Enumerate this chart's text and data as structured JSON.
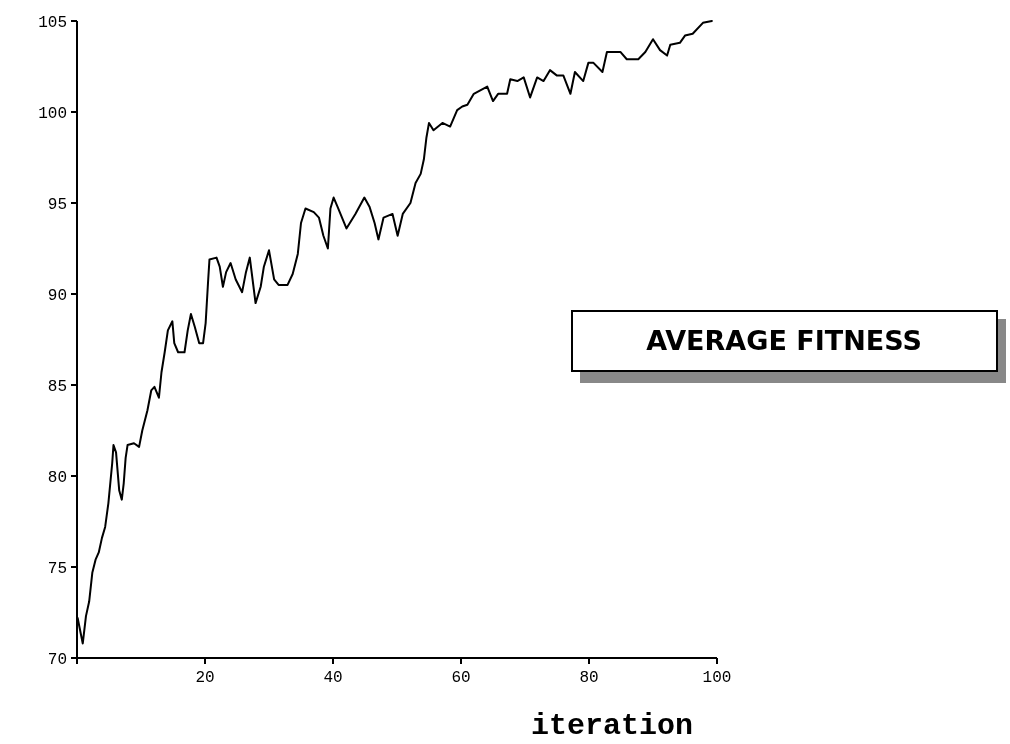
{
  "chart_data": {
    "type": "line",
    "title": "AVERAGE FITNESS",
    "xlabel": "iteration",
    "xlim": [
      0,
      100
    ],
    "ylim": [
      70,
      105
    ],
    "xticks": [
      20,
      40,
      60,
      80,
      100
    ],
    "yticks": [
      70,
      75,
      80,
      85,
      90,
      95,
      100,
      105
    ],
    "grid": false,
    "marker": "none",
    "line_style": "solid",
    "series": [
      {
        "color": "#000000",
        "x": [
          0.1,
          0.9,
          1.4,
          1.9,
          2.4,
          2.9,
          3.4,
          3.9,
          4.4,
          4.9,
          5.5,
          5.7,
          6.1,
          6.6,
          7,
          7.3,
          7.6,
          7.9,
          8.9,
          9.7,
          10.2,
          11,
          11.6,
          12.1,
          12.8,
          13.2,
          13.7,
          14.2,
          14.9,
          15.2,
          15.8,
          16.8,
          17.3,
          17.8,
          18.4,
          19.1,
          19.7,
          20.1,
          20.5,
          20.7,
          21.8,
          22.3,
          22.8,
          23.3,
          24,
          24.8,
          25.8,
          26.4,
          27,
          27.9,
          28.7,
          29.2,
          30,
          30.8,
          31.5,
          32.9,
          33.7,
          34.5,
          35,
          35.7,
          37,
          37.8,
          38.5,
          39.2,
          39.6,
          40.1,
          40.7,
          42.1,
          43.5,
          44.9,
          45.7,
          46.5,
          47.1,
          47.9,
          49.3,
          50.1,
          50.9,
          52.1,
          52.9,
          53.7,
          54.2,
          54.6,
          55,
          55.7,
          57.1,
          58.3,
          59.4,
          60.2,
          61,
          62,
          64.1,
          65,
          65.8,
          67.2,
          67.7,
          68.8,
          69.8,
          70.8,
          71.9,
          72.9,
          73.9,
          75,
          76,
          77.1,
          77.8,
          79.1,
          79.9,
          80.7,
          82.1,
          82.8,
          84.9,
          85.9,
          87.7,
          88.8,
          90,
          91.1,
          92.2,
          92.7,
          94.2,
          95,
          96.2,
          97.8,
          99.2
        ],
        "values": [
          72.2,
          70.8,
          72.3,
          73.1,
          74.7,
          75.4,
          75.8,
          76.6,
          77.2,
          78.5,
          80.7,
          81.7,
          81.3,
          79.2,
          78.7,
          79.6,
          81,
          81.7,
          81.8,
          81.6,
          82.5,
          83.6,
          84.7,
          84.9,
          84.3,
          85.7,
          86.8,
          88,
          88.5,
          87.3,
          86.8,
          86.8,
          88,
          88.9,
          88.2,
          87.3,
          87.3,
          88.4,
          90.8,
          91.9,
          92,
          91.5,
          90.4,
          91.2,
          91.7,
          90.8,
          90.1,
          91.2,
          92,
          89.5,
          90.4,
          91.5,
          92.4,
          90.8,
          90.5,
          90.5,
          91.1,
          92.2,
          93.9,
          94.7,
          94.5,
          94.2,
          93.2,
          92.5,
          94.7,
          95.3,
          94.8,
          93.6,
          94.4,
          95.3,
          94.8,
          93.9,
          93,
          94.2,
          94.4,
          93.2,
          94.4,
          95,
          96.1,
          96.6,
          97.4,
          98.6,
          99.4,
          99,
          99.4,
          99.2,
          100.1,
          100.3,
          100.4,
          101,
          101.4,
          100.6,
          101,
          101,
          101.8,
          101.7,
          101.9,
          100.8,
          101.9,
          101.7,
          102.3,
          102,
          102,
          101,
          102.2,
          101.7,
          102.7,
          102.7,
          102.2,
          103.3,
          103.3,
          102.9,
          102.9,
          103.3,
          104,
          103.4,
          103.1,
          103.7,
          103.8,
          104.2,
          104.3,
          104.9,
          105
        ]
      }
    ]
  }
}
